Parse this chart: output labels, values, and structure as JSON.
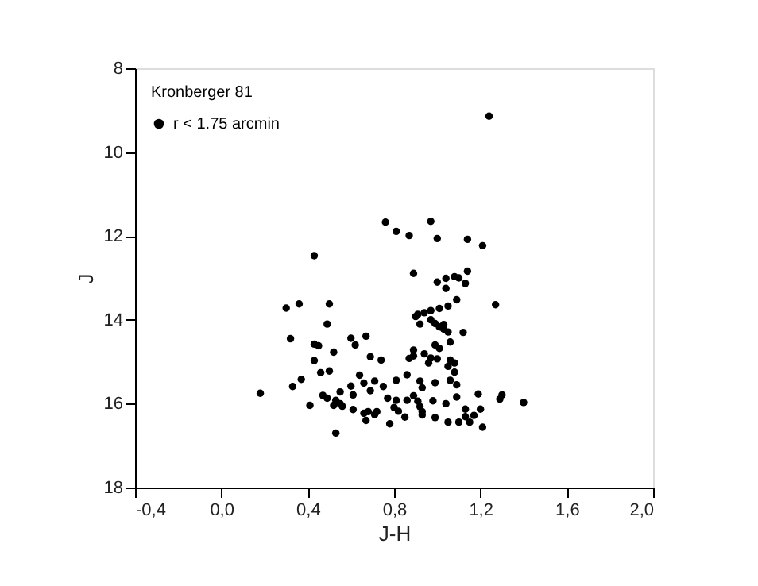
{
  "chart_data": {
    "type": "scatter",
    "xlabel": "J-H",
    "ylabel": "J",
    "legend_title": "Kronberger 81",
    "legend": "top left",
    "grid": false,
    "marker": "circle",
    "xlim": [
      -0.4,
      2.0
    ],
    "ylim": [
      18,
      8
    ],
    "xticks": [
      {
        "value": -0.4,
        "label": "-0,4"
      },
      {
        "value": 0.0,
        "label": "0,0"
      },
      {
        "value": 0.4,
        "label": "0,4"
      },
      {
        "value": 0.8,
        "label": "0,8"
      },
      {
        "value": 1.2,
        "label": "1,2"
      },
      {
        "value": 1.6,
        "label": "1,6"
      },
      {
        "value": 2.0,
        "label": "2,0"
      }
    ],
    "yticks": [
      8,
      10,
      12,
      14,
      16,
      18
    ],
    "series": [
      {
        "name": "r < 1.75 arcmin",
        "color": "#000000",
        "x": [
          0.43,
          0.3,
          0.36,
          0.5,
          0.49,
          0.32,
          0.6,
          0.62,
          0.43,
          0.45,
          0.52,
          0.43,
          0.46,
          0.5,
          0.37,
          0.33,
          0.18,
          0.41,
          0.47,
          0.49,
          0.53,
          0.52,
          0.55,
          0.56,
          0.55,
          0.6,
          0.61,
          0.64,
          0.66,
          0.61,
          0.53,
          0.66,
          1.24,
          0.76,
          0.81,
          0.87,
          0.97,
          1.0,
          1.14,
          1.21,
          0.89,
          1.0,
          1.04,
          1.08,
          1.1,
          1.14,
          1.13,
          1.04,
          1.09,
          1.27,
          1.05,
          1.01,
          0.97,
          0.94,
          0.9,
          0.91,
          0.92,
          0.97,
          0.99,
          1.01,
          1.03,
          1.05,
          1.03,
          1.12,
          1.06,
          0.99,
          1.01,
          0.67,
          0.69,
          0.74,
          0.89,
          0.89,
          0.87,
          0.94,
          0.97,
          1.0,
          0.96,
          1.06,
          1.08,
          1.05,
          1.08,
          0.86,
          0.81,
          0.92,
          0.99,
          1.06,
          0.71,
          0.75,
          0.93,
          1.09,
          0.69,
          0.77,
          0.81,
          0.86,
          0.89,
          0.91,
          0.98,
          0.92,
          0.8,
          0.82,
          0.85,
          0.93,
          0.93,
          1.04,
          1.09,
          1.19,
          1.3,
          1.29,
          1.4,
          1.13,
          1.2,
          1.13,
          1.17,
          0.99,
          1.05,
          1.1,
          1.15,
          1.21,
          0.78,
          0.68,
          0.71,
          0.72,
          0.67
        ],
        "values": [
          12.47,
          13.72,
          13.62,
          13.62,
          14.1,
          14.45,
          14.44,
          14.6,
          14.58,
          14.62,
          14.77,
          14.97,
          15.26,
          15.22,
          15.42,
          15.59,
          15.75,
          16.04,
          15.8,
          15.87,
          15.92,
          16.04,
          16.0,
          16.06,
          15.72,
          15.58,
          15.79,
          15.32,
          15.51,
          16.14,
          16.7,
          16.23,
          9.14,
          11.67,
          11.89,
          11.99,
          11.65,
          12.06,
          12.08,
          12.23,
          12.89,
          13.1,
          13.01,
          12.97,
          13.0,
          12.84,
          13.13,
          13.25,
          13.52,
          13.64,
          13.67,
          13.73,
          13.78,
          13.83,
          13.92,
          13.87,
          14.1,
          14.0,
          14.09,
          14.17,
          14.22,
          14.29,
          14.11,
          14.3,
          14.53,
          14.6,
          14.68,
          14.39,
          14.88,
          14.96,
          14.72,
          14.86,
          14.92,
          14.81,
          14.91,
          14.93,
          15.03,
          14.96,
          15.03,
          15.11,
          15.25,
          15.31,
          15.44,
          15.46,
          15.5,
          15.44,
          15.46,
          15.59,
          15.62,
          15.55,
          15.69,
          15.87,
          15.92,
          15.92,
          15.81,
          15.94,
          15.93,
          16.07,
          16.09,
          16.18,
          16.32,
          16.19,
          16.27,
          16.0,
          15.84,
          15.77,
          15.79,
          15.89,
          15.97,
          16.13,
          16.13,
          16.31,
          16.28,
          16.33,
          16.44,
          16.44,
          16.44,
          16.56,
          16.48,
          16.19,
          16.26,
          16.19,
          16.4
        ]
      }
    ]
  }
}
